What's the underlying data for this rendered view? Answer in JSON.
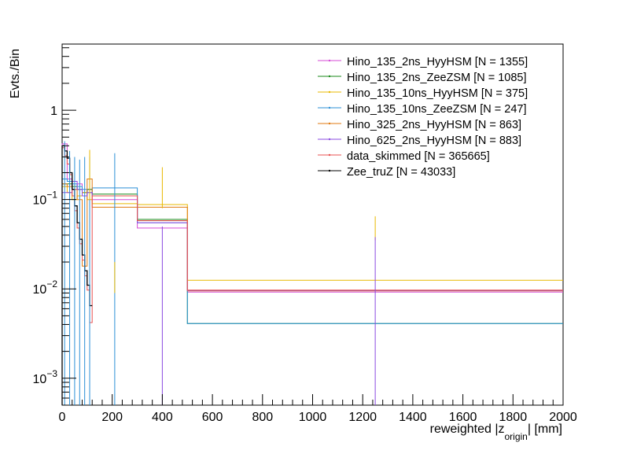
{
  "chart_data": {
    "type": "line",
    "ylabel": "Evts./Bin",
    "xlabel": {
      "main": "reweighted |z",
      "sub": "origin",
      "tail": "| [mm]"
    },
    "x_ticks": [
      "0",
      "200",
      "400",
      "600",
      "800",
      "1000",
      "1200",
      "1400",
      "1600",
      "1800",
      "2000"
    ],
    "y_ticks": [
      {
        "base": "1",
        "exp": ""
      },
      {
        "base": "10",
        "exp": "−1"
      },
      {
        "base": "10",
        "exp": "−2"
      },
      {
        "base": "10",
        "exp": "−3"
      }
    ],
    "xlim": [
      0,
      2000
    ],
    "ylim": [
      0.0005,
      5.5
    ],
    "ylog": true,
    "legend_position": "top-right",
    "series": [
      {
        "name": "Hino_135_2ns_HyyHSM [N = 1355]",
        "color": "#d64ad6",
        "edges": [
          0,
          20,
          40,
          60,
          80,
          100,
          120,
          300,
          500,
          2000
        ],
        "values": [
          0.42,
          0.17,
          0.13,
          0.15,
          0.12,
          0.13,
          0.1,
          0.048,
          0.0092
        ]
      },
      {
        "name": "Hino_135_2ns_ZeeZSM [N = 1085]",
        "color": "#1a8a1a",
        "edges": [
          0,
          20,
          40,
          60,
          80,
          100,
          120,
          300,
          500,
          2000
        ],
        "values": [
          0.15,
          0.15,
          0.14,
          0.13,
          0.12,
          0.13,
          0.115,
          0.06,
          0.0041
        ]
      },
      {
        "name": "Hino_135_10ns_HyyHSM [N = 375]",
        "color": "#e8b800",
        "edges": [
          0,
          20,
          40,
          60,
          80,
          100,
          120,
          300,
          500,
          2000
        ],
        "values": [
          0.14,
          0.12,
          0.1,
          0.11,
          0.12,
          0.1,
          0.09,
          0.088,
          0.0125
        ]
      },
      {
        "name": "Hino_135_10ns_ZeeZSM [N = 247]",
        "color": "#2a8fd6",
        "edges": [
          0,
          20,
          40,
          60,
          80,
          100,
          120,
          300,
          500,
          2000
        ],
        "values": [
          0.17,
          0.16,
          0.15,
          0.14,
          0.13,
          0.12,
          0.135,
          0.055,
          0.0041
        ]
      },
      {
        "name": "Hino_325_2ns_HyyHSM [N = 863]",
        "color": "#e07a10",
        "edges": [
          0,
          20,
          40,
          60,
          80,
          100,
          120,
          300,
          500,
          2000
        ],
        "values": [
          0.15,
          0.14,
          0.13,
          0.1,
          0.018,
          0.17,
          0.082,
          0.082,
          0.0095
        ]
      },
      {
        "name": "Hino_625_2ns_HyyHSM [N = 883]",
        "color": "#8a4ae0",
        "edges": [
          0,
          20,
          40,
          60,
          80,
          100,
          120,
          300,
          500,
          2000
        ],
        "values": [
          0.12,
          0.12,
          0.16,
          0.13,
          0.11,
          0.12,
          0.11,
          0.055,
          0.0096
        ]
      },
      {
        "name": "data_skimmed [N = 365665]",
        "color": "#e85050",
        "edges": [
          0,
          10,
          20,
          30,
          40,
          50,
          60,
          70,
          80,
          90,
          100,
          110,
          120,
          300,
          500,
          2000
        ],
        "values": [
          0.38,
          0.31,
          0.25,
          0.19,
          0.11,
          0.075,
          0.048,
          0.032,
          0.021,
          0.014,
          0.0097,
          0.0042,
          0.11,
          0.058,
          0.0097
        ]
      },
      {
        "name": "Zee_truZ [N = 43033]",
        "color": "#000000",
        "edges": [
          0,
          10,
          20,
          30,
          40,
          50,
          60,
          70,
          80,
          90,
          100,
          110,
          120
        ],
        "values": [
          0.4,
          0.35,
          0.29,
          0.2,
          0.13,
          0.085,
          0.055,
          0.036,
          0.024,
          0.016,
          0.011,
          0.0065
        ]
      }
    ],
    "spikes": [
      {
        "x": 10,
        "color": "#2a8fd6",
        "lo": 0.0005,
        "hi": 0.45
      },
      {
        "x": 30,
        "color": "#2a8fd6",
        "lo": 0.0005,
        "hi": 0.35
      },
      {
        "x": 50,
        "color": "#2a8fd6",
        "lo": 0.0005,
        "hi": 0.3
      },
      {
        "x": 70,
        "color": "#2a8fd6",
        "lo": 0.0005,
        "hi": 0.28
      },
      {
        "x": 90,
        "color": "#2a8fd6",
        "lo": 0.0005,
        "hi": 0.3
      },
      {
        "x": 110,
        "color": "#2a8fd6",
        "lo": 0.0005,
        "hi": 0.3
      },
      {
        "x": 110,
        "color": "#e8b800",
        "lo": 0.1,
        "hi": 0.36
      },
      {
        "x": 210,
        "color": "#2a8fd6",
        "lo": 0.0005,
        "hi": 0.33
      },
      {
        "x": 210,
        "color": "#e8b800",
        "lo": 0.009,
        "hi": 0.02
      },
      {
        "x": 400,
        "color": "#e8b800",
        "lo": 0.08,
        "hi": 0.23
      },
      {
        "x": 400,
        "color": "#8a4ae0",
        "lo": 0.0005,
        "hi": 0.05
      },
      {
        "x": 1250,
        "color": "#e8b800",
        "lo": 0.035,
        "hi": 0.065
      },
      {
        "x": 1250,
        "color": "#8a4ae0",
        "lo": 0.0005,
        "hi": 0.038
      }
    ]
  }
}
